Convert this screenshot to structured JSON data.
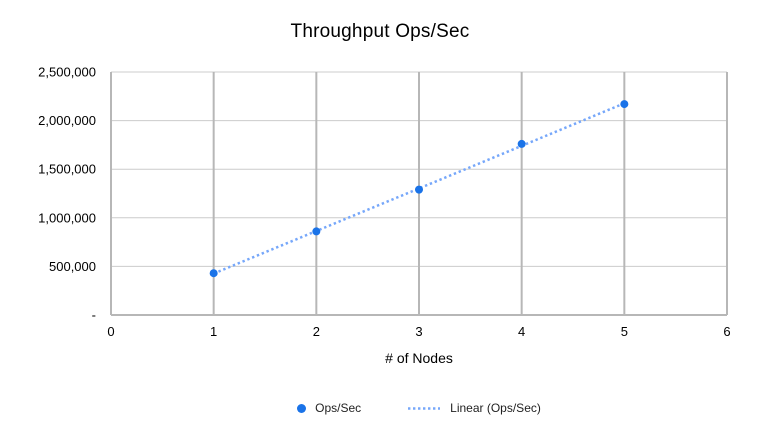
{
  "chart_data": {
    "type": "scatter",
    "title": "Throughput Ops/Sec",
    "xlabel": "# of Nodes",
    "ylabel": "",
    "x": [
      1,
      2,
      3,
      4,
      5
    ],
    "series": [
      {
        "name": "Ops/Sec",
        "values": [
          430000,
          860000,
          1290000,
          1760000,
          2170000
        ]
      }
    ],
    "trendline": {
      "label": "Linear (Ops/Sec)",
      "fit": "linear",
      "style": "dotted",
      "x_range": [
        1,
        5
      ]
    },
    "xlim": [
      0,
      6
    ],
    "ylim": [
      0,
      2500000
    ],
    "x_ticks": [
      0,
      1,
      2,
      3,
      4,
      5,
      6
    ],
    "y_ticks": [
      0,
      500000,
      1000000,
      1500000,
      2000000,
      2500000
    ],
    "y_tick_labels": [
      "-",
      "500,000",
      "1,000,000",
      "1,500,000",
      "2,000,000",
      "2,500,000"
    ],
    "grid": true,
    "legend_position": "bottom",
    "colors": {
      "series": "#1a73e8",
      "trendline": "#76a7fa",
      "h_gridline": "#cccccc",
      "v_gridline": "#b7b7b7",
      "axis_line": "#b7b7b7",
      "text": "#000000"
    }
  }
}
